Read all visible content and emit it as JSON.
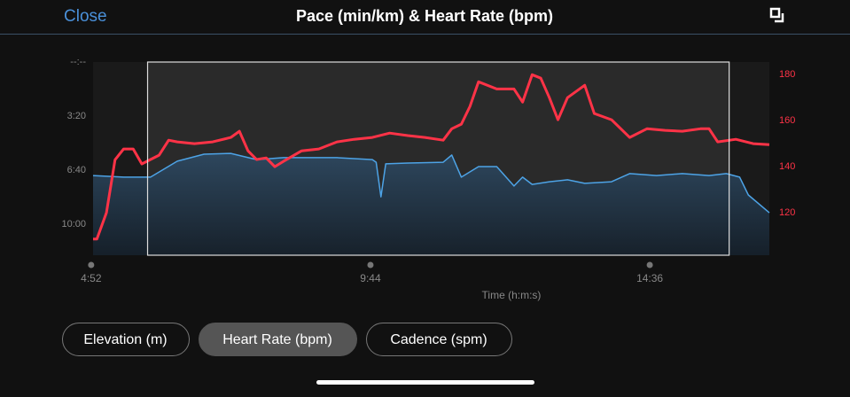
{
  "header": {
    "close": "Close"
  },
  "chart_data": {
    "type": "line",
    "title": "Pace (min/km) & Heart Rate (bpm)",
    "x_label": "Time (h:m:s)",
    "xlim": [
      294,
      1001
    ],
    "xticks": [
      {
        "value": 292,
        "label": "4:52"
      },
      {
        "value": 584,
        "label": "9:44"
      },
      {
        "value": 876,
        "label": "14:36"
      }
    ],
    "ylim": [
      715,
      0
    ],
    "yticks": [
      {
        "value": 0,
        "label": "--:--"
      },
      {
        "value": 200,
        "label": "3:20"
      },
      {
        "value": 400,
        "label": "6:40"
      },
      {
        "value": 600,
        "label": "10:00"
      }
    ],
    "y2lim": [
      101.5,
      185.5
    ],
    "y2ticks": [
      120,
      140,
      160,
      180
    ],
    "selection": [
      351,
      959
    ],
    "series": [
      {
        "color": "#4da3e6",
        "area": true,
        "x": [
          294,
          326,
          354,
          382,
          410,
          438,
          465,
          493,
          521,
          549,
          586,
          590,
          595,
          600,
          623,
          660,
          669,
          679,
          697,
          716,
          734,
          743,
          753,
          771,
          790,
          808,
          836,
          855,
          883,
          910,
          938,
          956,
          970,
          979,
          1001
        ],
        "values": [
          420,
          426,
          426,
          367,
          341,
          338,
          361,
          354,
          354,
          354,
          361,
          371,
          499,
          377,
          374,
          371,
          344,
          426,
          387,
          387,
          459,
          426,
          453,
          443,
          436,
          449,
          443,
          413,
          420,
          413,
          420,
          413,
          426,
          492,
          558
        ]
      },
      {
        "color": "#ff3347",
        "axis": "y2",
        "x": [
          294,
          298,
          308,
          317,
          326,
          336,
          345,
          354,
          363,
          373,
          382,
          400,
          419,
          438,
          447,
          456,
          465,
          475,
          484,
          493,
          512,
          530,
          549,
          567,
          586,
          604,
          623,
          641,
          660,
          669,
          679,
          688,
          697,
          716,
          734,
          743,
          753,
          762,
          771,
          780,
          790,
          808,
          818,
          836,
          855,
          873,
          892,
          910,
          929,
          938,
          947,
          966,
          984,
          1001
        ],
        "values": [
          108.5,
          108.5,
          120,
          143,
          147.7,
          147.7,
          141.2,
          143.1,
          145,
          151.5,
          150.8,
          150,
          150.8,
          152.7,
          155.4,
          146.9,
          143.1,
          143.8,
          140,
          142.3,
          146.9,
          147.7,
          150.8,
          151.9,
          152.7,
          154.6,
          153.5,
          152.7,
          151.5,
          156.5,
          158.5,
          166.2,
          176.9,
          173.8,
          173.8,
          168.1,
          180,
          178.5,
          170,
          160.4,
          170,
          175.4,
          163.1,
          160.4,
          152.7,
          156.5,
          155.8,
          155.4,
          156.5,
          156.5,
          150.8,
          151.9,
          150,
          149.6
        ]
      }
    ]
  },
  "buttons": [
    {
      "label": "Elevation (m)"
    },
    {
      "label": "Heart Rate (bpm)",
      "selected": true
    },
    {
      "label": "Cadence (spm)"
    }
  ]
}
